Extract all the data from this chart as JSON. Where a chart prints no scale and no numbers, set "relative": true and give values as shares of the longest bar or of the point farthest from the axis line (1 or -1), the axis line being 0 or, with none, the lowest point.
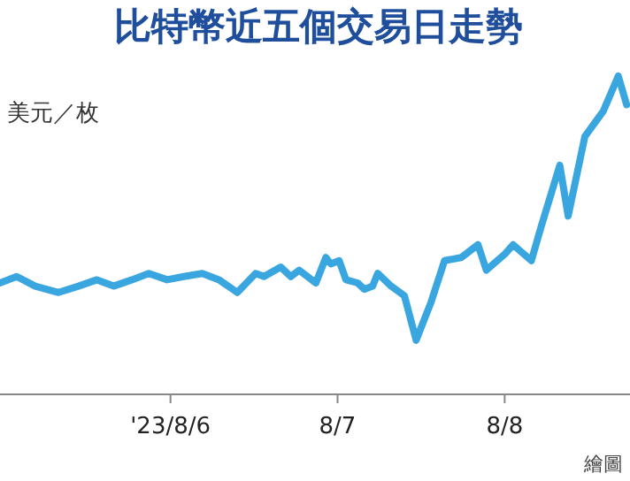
{
  "chart_data": {
    "type": "line",
    "title": "比特幣近五個交易日走勢",
    "ylabel": "美元／枚",
    "annotations": [
      "繪圖"
    ],
    "relative": true,
    "xlim": [
      "2023-08-04T23:31",
      "2023-08-08T18:00"
    ],
    "xticks": [
      {
        "value": "2023-08-06",
        "label": "'23/8/6"
      },
      {
        "value": "2023-08-07",
        "label": "8/7"
      },
      {
        "value": "2023-08-08",
        "label": "8/8"
      }
    ],
    "series": [
      {
        "color": "#3aa6e0",
        "x": [
          "2023-08-04T23:31",
          "2023-08-05T01:55",
          "2023-08-05T04:34",
          "2023-08-05T07:55",
          "2023-08-05T10:48",
          "2023-08-05T13:26",
          "2023-08-05T15:50",
          "2023-08-05T18:29",
          "2023-08-05T20:53",
          "2023-08-05T23:31",
          "2023-08-06T01:55",
          "2023-08-06T04:34",
          "2023-08-06T06:58",
          "2023-08-06T09:36",
          "2023-08-06T12:14",
          "2023-08-06T13:26",
          "2023-08-06T15:50",
          "2023-08-06T17:17",
          "2023-08-06T18:29",
          "2023-08-06T20:53",
          "2023-08-06T22:19",
          "2023-08-06T23:02",
          "2023-08-07T00:14",
          "2023-08-07T01:12",
          "2023-08-07T02:53",
          "2023-08-07T03:50",
          "2023-08-07T05:02",
          "2023-08-07T05:46",
          "2023-08-07T07:41",
          "2023-08-07T09:36",
          "2023-08-07T11:17",
          "2023-08-07T13:26",
          "2023-08-07T15:22",
          "2023-08-07T17:46",
          "2023-08-07T20:10",
          "2023-08-07T21:22",
          "2023-08-08T00:00",
          "2023-08-08T01:12",
          "2023-08-08T03:50",
          "2023-08-08T05:17",
          "2023-08-08T07:55",
          "2023-08-08T09:07",
          "2023-08-08T11:31",
          "2023-08-08T14:10",
          "2023-08-08T16:19",
          "2023-08-08T17:31"
        ],
        "values": [
          0.35,
          0.37,
          0.34,
          0.32,
          0.34,
          0.36,
          0.34,
          0.36,
          0.38,
          0.36,
          0.37,
          0.38,
          0.36,
          0.32,
          0.38,
          0.37,
          0.4,
          0.37,
          0.39,
          0.35,
          0.43,
          0.41,
          0.42,
          0.36,
          0.35,
          0.33,
          0.34,
          0.38,
          0.34,
          0.31,
          0.17,
          0.29,
          0.42,
          0.43,
          0.47,
          0.39,
          0.44,
          0.47,
          0.42,
          0.53,
          0.72,
          0.56,
          0.81,
          0.89,
          1.0,
          0.91
        ]
      }
    ]
  }
}
